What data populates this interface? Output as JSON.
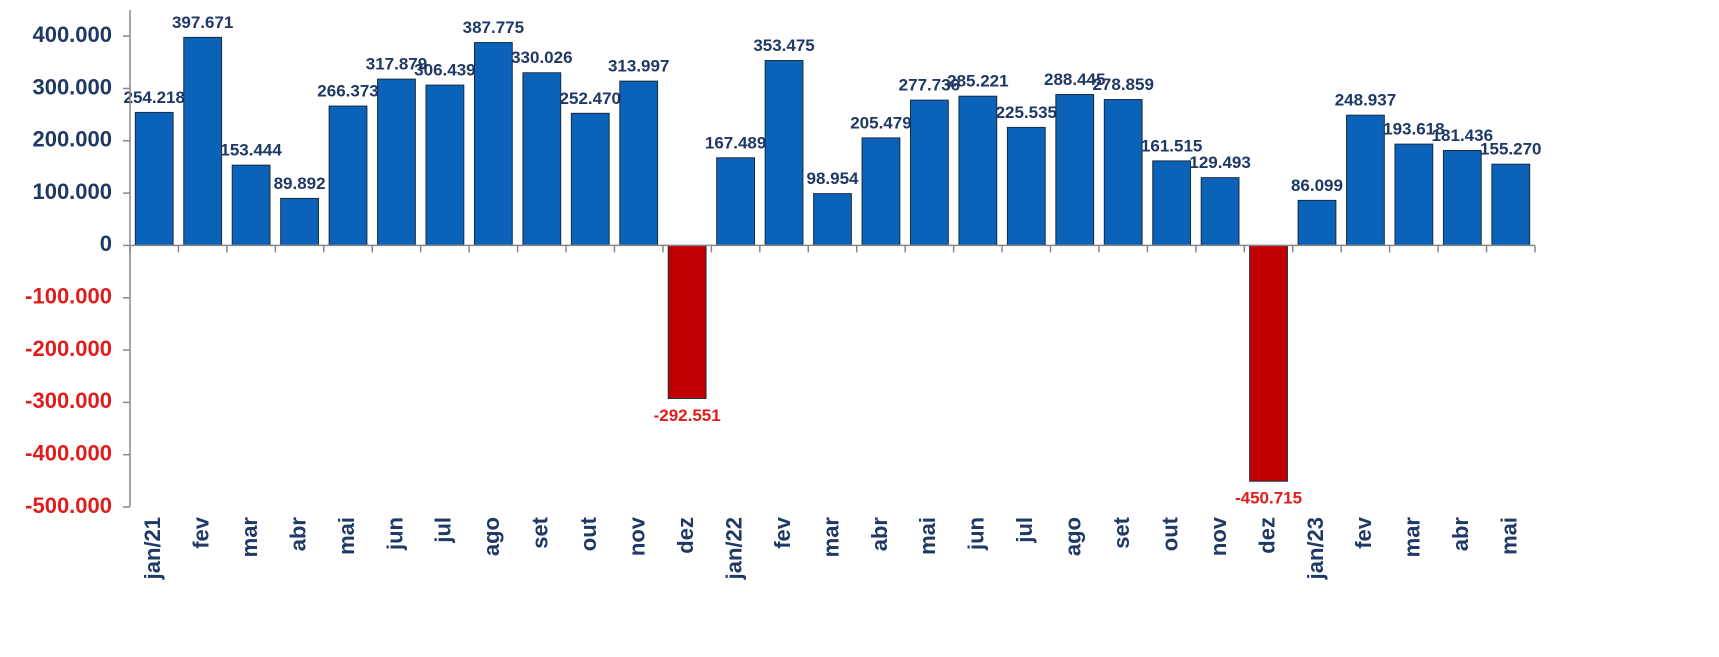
{
  "chart_data": {
    "type": "bar",
    "categories": [
      "jan/21",
      "fev",
      "mar",
      "abr",
      "mai",
      "jun",
      "jul",
      "ago",
      "set",
      "out",
      "nov",
      "dez",
      "jan/22",
      "fev",
      "mar",
      "abr",
      "mai",
      "jun",
      "jul",
      "ago",
      "set",
      "out",
      "nov",
      "dez",
      "jan/23",
      "fev",
      "mar",
      "abr",
      "mai"
    ],
    "values": [
      254218,
      397671,
      153444,
      89892,
      266373,
      317879,
      306439,
      387775,
      330026,
      252470,
      313997,
      -292551,
      167489,
      353475,
      98954,
      205479,
      277736,
      285221,
      225535,
      288445,
      278859,
      161515,
      129493,
      -450715,
      86099,
      248937,
      193618,
      181436,
      155270
    ],
    "value_labels": [
      "254.218",
      "397.671",
      "153.444",
      "89.892",
      "266.373",
      "317.879",
      "306.439",
      "387.775",
      "330.026",
      "252.470",
      "313.997",
      "-292.551",
      "167.489",
      "353.475",
      "98.954",
      "205.479",
      "277.736",
      "285.221",
      "225.535",
      "288.445",
      "278.859",
      "161.515",
      "129.493",
      "-450.715",
      "86.099",
      "248.937",
      "193.618",
      "181.436",
      "155.270"
    ],
    "ylim": [
      -500000,
      450000
    ],
    "yticks": [
      {
        "value": 400000,
        "label": "400.000"
      },
      {
        "value": 300000,
        "label": "300.000"
      },
      {
        "value": 200000,
        "label": "200.000"
      },
      {
        "value": 100000,
        "label": "100.000"
      },
      0,
      {
        "value": -100000,
        "label": "-100.000"
      },
      {
        "value": -200000,
        "label": "-200.000"
      },
      {
        "value": -300000,
        "label": "-300.000"
      },
      {
        "value": -400000,
        "label": "-400.000"
      },
      {
        "value": -500000,
        "label": "-500.000"
      }
    ],
    "color": "#0b63b9",
    "negative_color": "#c00000",
    "label_color": "#1f3864",
    "negative_label_color": "#e01c1c",
    "grid": false
  }
}
